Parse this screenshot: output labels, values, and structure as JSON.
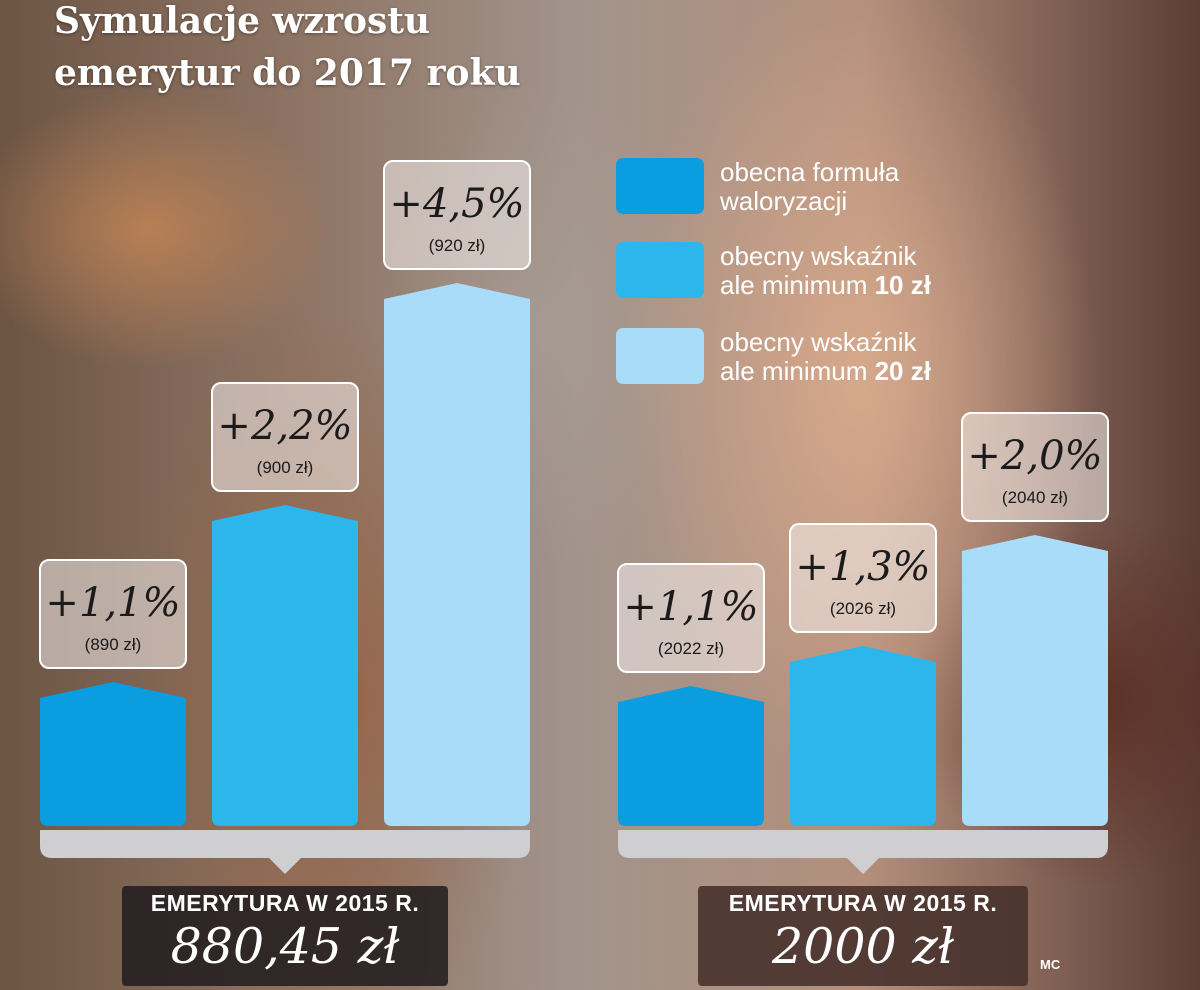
{
  "title_line1": "Symulacje wzrostu",
  "title_line2": "emerytur do 2017 roku",
  "colors": {
    "series1": "#0a9ee0",
    "series2": "#2cb6ec",
    "series3": "#a9dcf8"
  },
  "legend": [
    {
      "line1": "obecna formuła",
      "line2_text": "waloryzacji",
      "line2_bold": ""
    },
    {
      "line1": "obecny wskaźnik",
      "line2_text": "ale minimum ",
      "line2_bold": "10 zł"
    },
    {
      "line1": "obecny wskaźnik",
      "line2_text": "ale minimum ",
      "line2_bold": "20 zł"
    }
  ],
  "groups": [
    {
      "footer_label": "EMERYTURA W 2015 R.",
      "footer_value": "880,45 zł"
    },
    {
      "footer_label": "EMERYTURA W 2015 R.",
      "footer_value": "2000 zł"
    }
  ],
  "credit": "MC",
  "chart_data": [
    {
      "type": "bar",
      "title": "",
      "subtitle": "",
      "categories": [
        "obecna formuła waloryzacji",
        "obecny wskaźnik ale minimum 10 zł",
        "obecny wskaźnik ale minimum 20 zł"
      ],
      "values": [
        890,
        900,
        920
      ],
      "value_labels": [
        "+1,1%",
        "+2,2%",
        "+4,5%"
      ],
      "sub_labels": [
        "(890 zł)",
        "(900 zł)",
        "(920 zł)"
      ],
      "baseline": 880.45,
      "grid": false,
      "legend": "top-right"
    },
    {
      "type": "bar",
      "title": "",
      "subtitle": "",
      "categories": [
        "obecna formuła waloryzacji",
        "obecny wskaźnik ale minimum 10 zł",
        "obecny wskaźnik ale minimum 20 zł"
      ],
      "values": [
        2022,
        2026,
        2040
      ],
      "value_labels": [
        "+1,1%",
        "+1,3%",
        "+2,0%"
      ],
      "sub_labels": [
        "(2022 zł)",
        "(2026 zł)",
        "(2040 zł)"
      ],
      "baseline": 2000,
      "grid": false,
      "legend": "top-right"
    }
  ]
}
